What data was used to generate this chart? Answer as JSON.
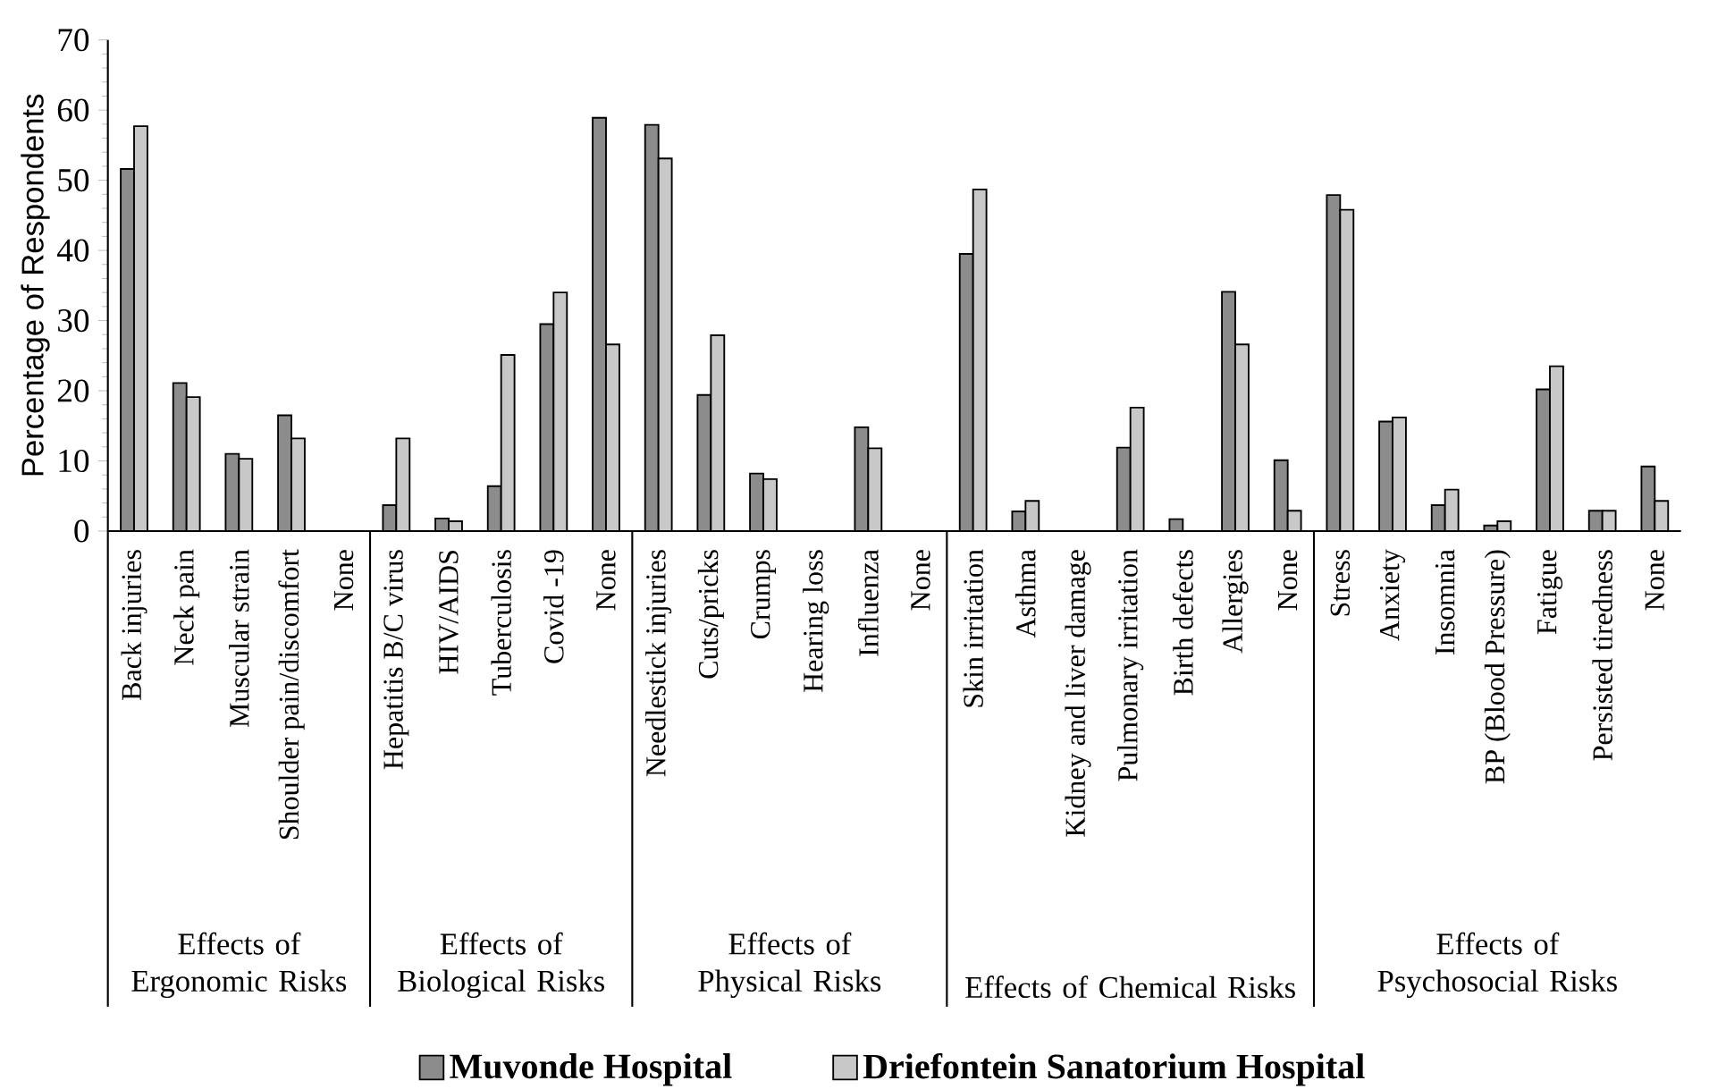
{
  "chart_data": {
    "type": "bar",
    "ylabel": "Percentage of Respondents",
    "categories": [
      "Back injuries",
      "Neck pain",
      "Muscular strain",
      "Shoulder pain/discomfort",
      "None",
      "Hepatitis B/C virus",
      "HIV/AIDS",
      "Tuberculosis",
      "Covid -19",
      "None",
      "Needlestick injuries",
      "Cuts/pricks",
      "Crumps",
      "Hearing loss",
      "Influenza",
      "None",
      "Skin irritation",
      "Asthma",
      "Kidney and liver damage",
      "Pulmonary irritation",
      "Birth defects",
      "Allergies",
      "None",
      "Stress",
      "Anxiety",
      "Insomnia",
      "BP (Blood Pressure)",
      "Fatigue",
      "Persisted tiredness",
      "None"
    ],
    "series": [
      {
        "name": "Muvonde Hospital",
        "color": "#8c8c8c",
        "values": [
          51.6,
          21.1,
          11.0,
          16.5,
          null,
          3.7,
          1.8,
          6.4,
          29.5,
          58.9,
          57.9,
          19.4,
          8.2,
          null,
          14.8,
          null,
          39.5,
          2.8,
          null,
          11.9,
          1.7,
          34.1,
          10.1,
          47.9,
          15.6,
          3.7,
          0.8,
          20.2,
          2.9,
          9.2
        ]
      },
      {
        "name": "Driefontein Sanatorium Hospital",
        "color": "#c8c8c8",
        "values": [
          57.7,
          19.1,
          10.3,
          13.2,
          null,
          13.2,
          1.4,
          25.1,
          34.0,
          26.6,
          53.1,
          27.9,
          7.4,
          null,
          11.8,
          null,
          48.7,
          4.3,
          null,
          17.6,
          null,
          26.6,
          2.9,
          45.8,
          16.2,
          5.9,
          1.4,
          23.5,
          2.9,
          4.3
        ]
      }
    ],
    "ylim": [
      0,
      70
    ],
    "yticks": [
      0,
      10,
      20,
      30,
      40,
      50,
      60,
      70
    ],
    "legend": "bottom",
    "annotations": [
      "Effects of Ergonomic Risks",
      "Effects of Biological Risks",
      "Effects of Physical Risks",
      "Effects of Chemical Risks",
      "Effects of Psychosocial Risks"
    ]
  }
}
